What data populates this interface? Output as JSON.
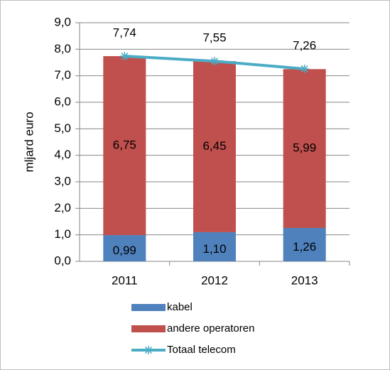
{
  "chart_data": {
    "type": "bar",
    "y_label": "mljard euro",
    "categories": [
      "2011",
      "2012",
      "2013"
    ],
    "series": [
      {
        "name": "kabel",
        "type": "bar",
        "color": "#4f81bd",
        "values": [
          0.99,
          1.1,
          1.26
        ],
        "value_labels": [
          "0,99",
          "1,10",
          "1,26"
        ]
      },
      {
        "name": "andere operatoren",
        "type": "bar",
        "color": "#c0504d",
        "values": [
          6.75,
          6.45,
          5.99
        ],
        "value_labels": [
          "6,75",
          "6,45",
          "5,99"
        ]
      },
      {
        "name": "Totaal telecom",
        "type": "line",
        "color": "#4bacc6",
        "values": [
          7.74,
          7.55,
          7.26
        ],
        "value_labels": [
          "7,74",
          "7,55",
          "7,26"
        ]
      }
    ],
    "stacked": true,
    "ylim": [
      0,
      9
    ],
    "yticks": [
      {
        "value": 0,
        "label": "0,0"
      },
      {
        "value": 1,
        "label": "1,0"
      },
      {
        "value": 2,
        "label": "2,0"
      },
      {
        "value": 3,
        "label": "3,0"
      },
      {
        "value": 4,
        "label": "4,0"
      },
      {
        "value": 5,
        "label": "5,0"
      },
      {
        "value": 6,
        "label": "6,0"
      },
      {
        "value": 7,
        "label": "7,0"
      },
      {
        "value": 8,
        "label": "8,0"
      },
      {
        "value": 9,
        "label": "9,0"
      }
    ],
    "grid": true,
    "legend": "bottom"
  }
}
